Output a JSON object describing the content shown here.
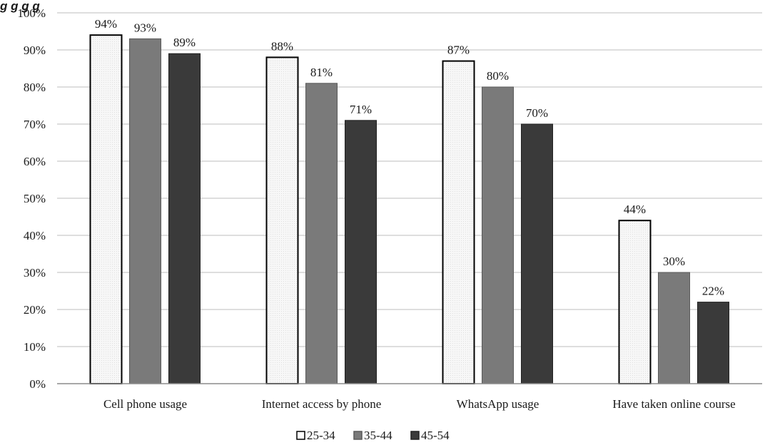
{
  "chart_data": {
    "type": "bar",
    "title": "g   g          g   g",
    "categories": [
      "Cell phone usage",
      "Internet access by phone",
      "WhatsApp usage",
      "Have taken online course"
    ],
    "series": [
      {
        "name": "25-34",
        "values": [
          94,
          88,
          87,
          44
        ],
        "labels": [
          "94%",
          "88%",
          "87%",
          "44%"
        ],
        "color": "#f4f4f4",
        "stroke": "#000000"
      },
      {
        "name": "35-44",
        "values": [
          93,
          81,
          80,
          30
        ],
        "labels": [
          "93%",
          "81%",
          "80%",
          "30%"
        ],
        "color": "#7a7a7a",
        "stroke": "#5a5a5a"
      },
      {
        "name": "45-54",
        "values": [
          89,
          71,
          70,
          22
        ],
        "labels": [
          "89%",
          "71%",
          "70%",
          "22%"
        ],
        "color": "#3a3a3a",
        "stroke": "#222222"
      }
    ],
    "ylim": [
      0,
      100
    ],
    "yticks": [
      "0%",
      "10%",
      "20%",
      "30%",
      "40%",
      "50%",
      "60%",
      "70%",
      "80%",
      "90%",
      "100%"
    ],
    "grid": true,
    "legend": "bottom-center"
  }
}
